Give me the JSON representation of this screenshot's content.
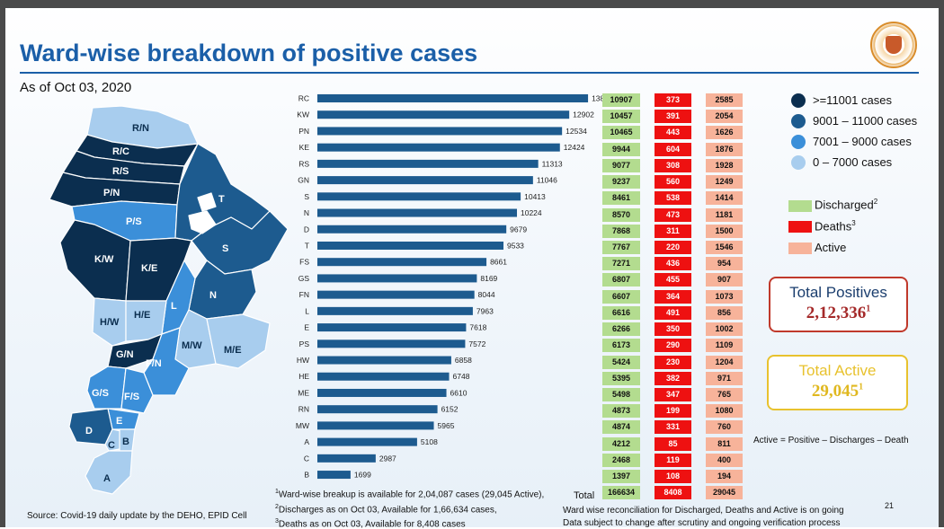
{
  "title": "Ward-wise breakdown of positive cases",
  "as_of": "As of Oct 03, 2020",
  "map_labels": [
    "R/N",
    "R/C",
    "R/S",
    "P/N",
    "P/S",
    "T",
    "S",
    "K/W",
    "K/E",
    "N",
    "L",
    "H/W",
    "H/E",
    "M/W",
    "M/E",
    "G/N",
    "F/N",
    "G/S",
    "F/S",
    "E",
    "D",
    "C",
    "B",
    "A"
  ],
  "chart_data": {
    "type": "bar",
    "orientation": "horizontal",
    "categories": [
      "RC",
      "KW",
      "PN",
      "KE",
      "RS",
      "GN",
      "S",
      "N",
      "D",
      "T",
      "FS",
      "GS",
      "FN",
      "L",
      "E",
      "PS",
      "HW",
      "HE",
      "ME",
      "RN",
      "MW",
      "A",
      "C",
      "B"
    ],
    "values": [
      13865,
      12902,
      12534,
      12424,
      11313,
      11046,
      10413,
      10224,
      9679,
      9533,
      8661,
      8169,
      8044,
      7963,
      7618,
      7572,
      6858,
      6748,
      6610,
      6152,
      5965,
      5108,
      2987,
      1699
    ],
    "xlim": [
      0,
      14000
    ]
  },
  "table": {
    "discharged": [
      "10907",
      "10457",
      "10465",
      "9944",
      "9077",
      "9237",
      "8461",
      "8570",
      "7868",
      "7767",
      "7271",
      "6807",
      "6607",
      "6616",
      "6266",
      "6173",
      "5424",
      "5395",
      "5498",
      "4873",
      "4874",
      "4212",
      "2468",
      "1397"
    ],
    "deaths": [
      "373",
      "391",
      "443",
      "604",
      "308",
      "560",
      "538",
      "473",
      "311",
      "220",
      "436",
      "455",
      "364",
      "491",
      "350",
      "290",
      "230",
      "382",
      "347",
      "199",
      "331",
      "85",
      "119",
      "108"
    ],
    "active": [
      "2585",
      "2054",
      "1626",
      "1876",
      "1928",
      "1249",
      "1414",
      "1181",
      "1500",
      "1546",
      "954",
      "907",
      "1073",
      "856",
      "1002",
      "1109",
      "1204",
      "971",
      "765",
      "1080",
      "760",
      "811",
      "400",
      "194"
    ],
    "total_label": "Total",
    "total_discharged": "166634",
    "total_deaths": "8408",
    "total_active": "29045"
  },
  "legend": {
    "ranges": [
      {
        "label": ">=11001 cases",
        "color": "#0b2e4f"
      },
      {
        "label": "9001 – 11000 cases",
        "color": "#1d5b8f"
      },
      {
        "label": "7001 – 9000 cases",
        "color": "#3b8fd9"
      },
      {
        "label": "0 – 7000 cases",
        "color": "#a8cdee"
      }
    ],
    "discharged": "Discharged",
    "discharged_sup": "2",
    "deaths": "Deaths",
    "deaths_sup": "3",
    "active": "Active"
  },
  "colors": {
    "discharged": "#b3dc8f",
    "deaths": "#ee1111",
    "active": "#f7b39a",
    "bars": "#1d5b8f",
    "title": "#1b5fa8"
  },
  "total_positives": {
    "caption": "Total Positives",
    "value": "2,12,336",
    "sup": "1"
  },
  "total_active": {
    "caption": "Total Active",
    "value": "29,045",
    "sup": "1"
  },
  "formula": "Active = Positive – Discharges – Death",
  "footnotes": {
    "f1_sup": "1",
    "f1": "Ward-wise breakup is available for 2,04,087 cases (29,045 Active),",
    "f2_sup": "2",
    "f2": "Discharges as on Oct 03, Available for 1,66,634 cases,",
    "f3_sup": "3",
    "f3": "Deaths as on Oct 03, Available for 8,408 cases",
    "note1": "Ward wise reconciliation for Discharged, Deaths and Active is on going",
    "note2": "Data subject to change after scrutiny and ongoing verification process"
  },
  "source": "Source: Covid-19 daily update by the DEHO, EPID Cell",
  "page_number": "21"
}
